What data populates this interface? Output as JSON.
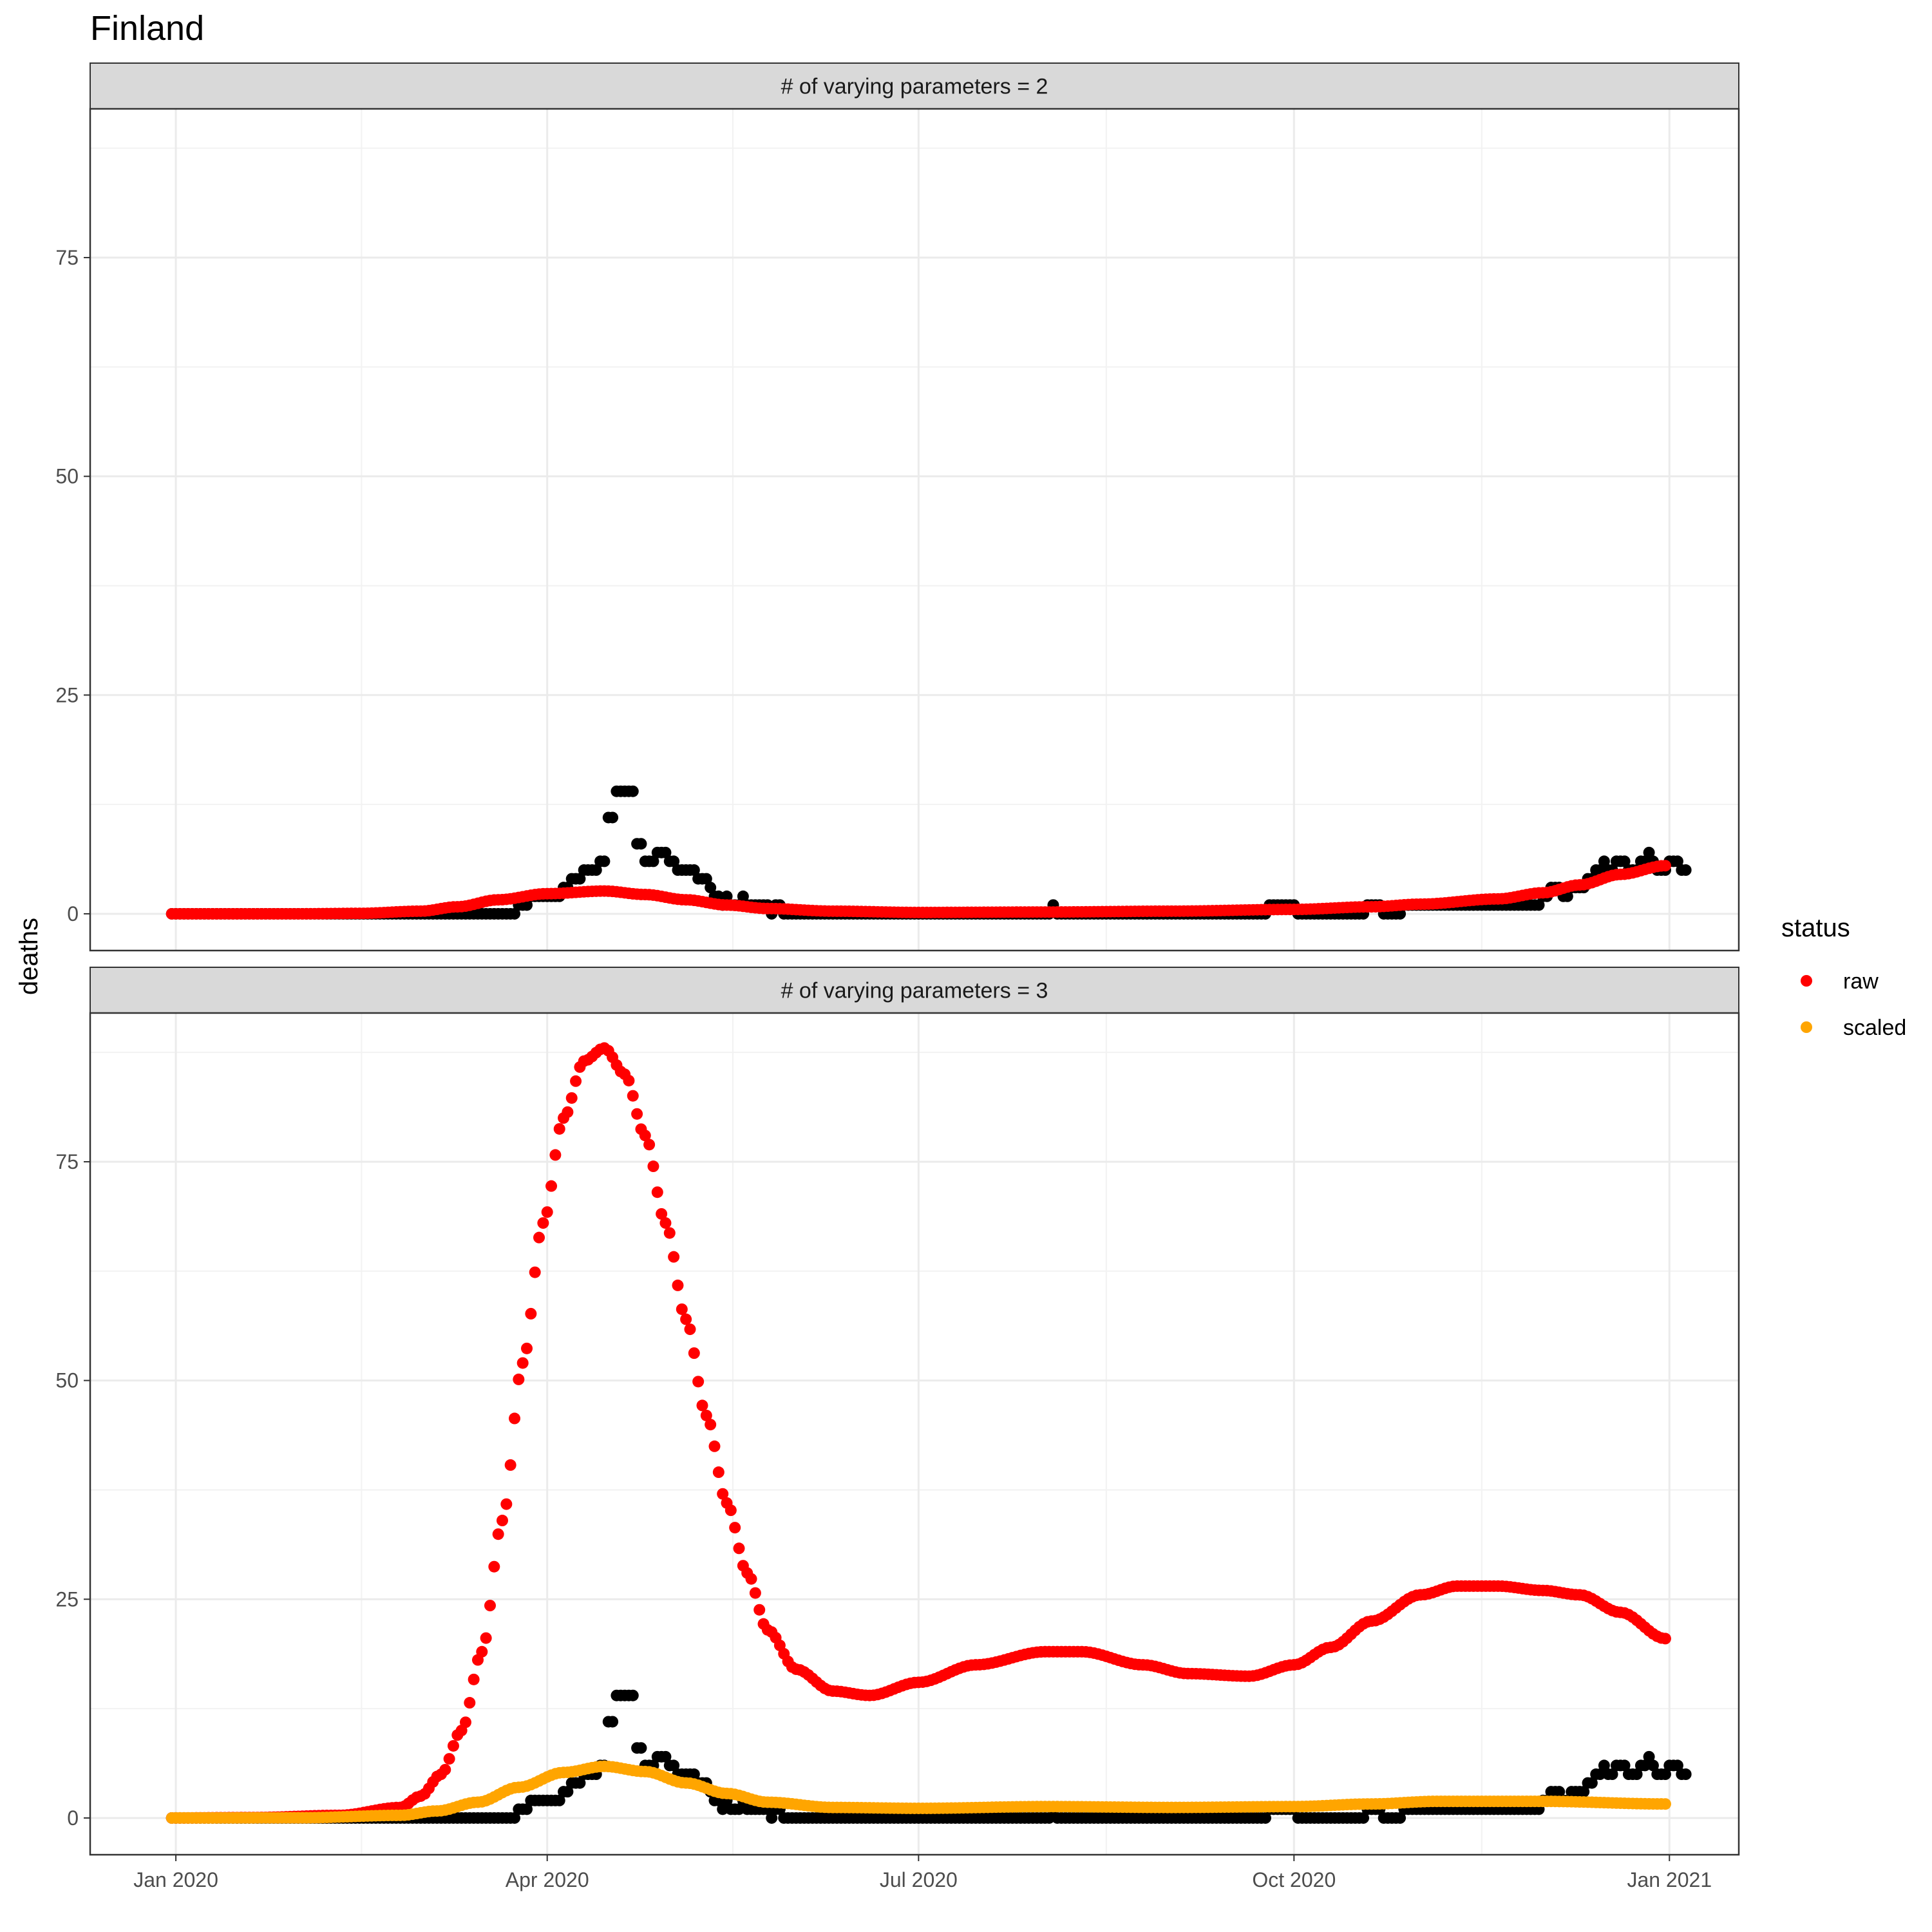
{
  "chart_data": {
    "type": "scatter",
    "title": "Finland",
    "ylabel": "deaths",
    "xlabel": "",
    "x_ticks": [
      {
        "date": "2020-01-01",
        "label": "Jan 2020"
      },
      {
        "date": "2020-04-01",
        "label": "Apr 2020"
      },
      {
        "date": "2020-07-01",
        "label": "Jul 2020"
      },
      {
        "date": "2020-10-01",
        "label": "Oct 2020"
      },
      {
        "date": "2021-01-01",
        "label": "Jan 2021"
      }
    ],
    "xlim": [
      "2019-12-11",
      "2021-01-18"
    ],
    "y_ticks": [
      0,
      25,
      50,
      75
    ],
    "ylim": [
      -4.2,
      92
    ],
    "grid": true,
    "legend": {
      "title": "status",
      "placement": "right",
      "entries": [
        {
          "name": "raw",
          "color": "#ff0000"
        },
        {
          "name": "scaled",
          "color": "#ffa500"
        }
      ]
    },
    "observed_color": "#000000",
    "observed_deaths": {
      "start_date": "2019-12-31",
      "values": [
        0,
        0,
        0,
        0,
        0,
        0,
        0,
        0,
        0,
        0,
        0,
        0,
        0,
        0,
        0,
        0,
        0,
        0,
        0,
        0,
        0,
        0,
        0,
        0,
        0,
        0,
        0,
        0,
        0,
        0,
        0,
        0,
        0,
        0,
        0,
        0,
        0,
        0,
        0,
        0,
        0,
        0,
        0,
        0,
        0,
        0,
        0,
        0,
        0,
        0,
        0,
        0,
        0,
        0,
        0,
        0,
        0,
        0,
        0,
        0,
        0,
        0,
        0,
        0,
        0,
        0,
        0,
        0,
        0,
        0,
        0,
        0,
        0,
        0,
        0,
        0,
        0,
        0,
        0,
        0,
        0,
        0,
        0,
        0,
        0,
        1,
        1,
        1,
        2,
        2,
        2,
        2,
        2,
        2,
        2,
        2,
        3,
        3,
        4,
        4,
        4,
        5,
        5,
        5,
        5,
        6,
        6,
        11,
        11,
        14,
        14,
        14,
        14,
        14,
        8,
        8,
        6,
        6,
        6,
        7,
        7,
        7,
        6,
        6,
        5,
        5,
        5,
        5,
        5,
        4,
        4,
        4,
        3,
        2,
        2,
        1,
        2,
        1,
        1,
        1,
        2,
        1,
        1,
        1,
        1,
        1,
        1,
        0,
        1,
        1,
        0,
        0,
        0,
        0,
        0,
        0,
        0,
        0,
        0,
        0,
        0,
        0,
        0,
        0,
        0,
        0,
        0,
        0,
        0,
        0,
        0,
        0,
        0,
        0,
        0,
        0,
        0,
        0,
        0,
        0,
        0,
        0,
        0,
        0,
        0,
        0,
        0,
        0,
        0,
        0,
        0,
        0,
        0,
        0,
        0,
        0,
        0,
        0,
        0,
        0,
        0,
        0,
        0,
        0,
        0,
        0,
        0,
        0,
        0,
        0,
        0,
        0,
        0,
        0,
        0,
        0,
        1,
        0,
        0,
        0,
        0,
        0,
        0,
        0,
        0,
        0,
        0,
        0,
        0,
        0,
        0,
        0,
        0,
        0,
        0,
        0,
        0,
        0,
        0,
        0,
        0,
        0,
        0,
        0,
        0,
        0,
        0,
        0,
        0,
        0,
        0,
        0,
        0,
        0,
        0,
        0,
        0,
        0,
        0,
        0,
        0,
        0,
        0,
        0,
        0,
        0,
        0,
        0,
        0,
        1,
        1,
        1,
        1,
        1,
        1,
        1,
        0,
        0,
        0,
        0,
        0,
        0,
        0,
        0,
        0,
        0,
        0,
        0,
        0,
        0,
        0,
        0,
        0,
        1,
        1,
        1,
        1,
        0,
        0,
        0,
        0,
        0,
        1,
        1,
        1,
        1,
        1,
        1,
        1,
        1,
        1,
        1,
        1,
        1,
        1,
        1,
        1,
        1,
        1,
        1,
        1,
        1,
        1,
        1,
        1,
        1,
        1,
        1,
        1,
        1,
        1,
        1,
        1,
        1,
        1,
        1,
        2,
        2,
        3,
        3,
        3,
        2,
        2,
        3,
        3,
        3,
        3,
        4,
        4,
        5,
        5,
        6,
        5,
        5,
        6,
        6,
        6,
        5,
        5,
        5,
        6,
        6,
        7,
        6,
        5,
        5,
        5,
        6,
        6,
        6,
        5,
        5
      ]
    },
    "panels": [
      {
        "strip": "# of varying parameters = 2",
        "curves": [
          {
            "name": "raw",
            "color": "#ff0000",
            "points": [
              [
                "2019-12-31",
                0
              ],
              [
                "2020-02-01",
                0
              ],
              [
                "2020-02-15",
                0.05
              ],
              [
                "2020-03-01",
                0.3
              ],
              [
                "2020-03-10",
                0.8
              ],
              [
                "2020-03-20",
                1.6
              ],
              [
                "2020-04-01",
                2.3
              ],
              [
                "2020-04-15",
                2.6
              ],
              [
                "2020-04-25",
                2.2
              ],
              [
                "2020-05-05",
                1.6
              ],
              [
                "2020-05-15",
                1.0
              ],
              [
                "2020-05-25",
                0.6
              ],
              [
                "2020-06-10",
                0.3
              ],
              [
                "2020-07-01",
                0.15
              ],
              [
                "2020-08-01",
                0.2
              ],
              [
                "2020-09-01",
                0.3
              ],
              [
                "2020-10-01",
                0.5
              ],
              [
                "2020-10-20",
                0.8
              ],
              [
                "2020-11-01",
                1.1
              ],
              [
                "2020-11-20",
                1.7
              ],
              [
                "2020-12-01",
                2.4
              ],
              [
                "2020-12-10",
                3.3
              ],
              [
                "2020-12-20",
                4.5
              ],
              [
                "2020-12-31",
                5.5
              ]
            ]
          }
        ]
      },
      {
        "strip": "# of varying parameters = 3",
        "curves": [
          {
            "name": "raw",
            "color": "#ff0000",
            "points": [
              [
                "2019-12-31",
                0
              ],
              [
                "2020-01-20",
                0.05
              ],
              [
                "2020-02-10",
                0.3
              ],
              [
                "2020-02-25",
                1.2
              ],
              [
                "2020-03-01",
                2.5
              ],
              [
                "2020-03-06",
                5
              ],
              [
                "2020-03-11",
                10
              ],
              [
                "2020-03-16",
                19
              ],
              [
                "2020-03-21",
                34
              ],
              [
                "2020-03-26",
                52
              ],
              [
                "2020-03-31",
                68
              ],
              [
                "2020-04-05",
                80
              ],
              [
                "2020-04-10",
                86.5
              ],
              [
                "2020-04-15",
                88
              ],
              [
                "2020-04-20",
                85
              ],
              [
                "2020-04-25",
                78
              ],
              [
                "2020-04-30",
                68
              ],
              [
                "2020-05-05",
                57
              ],
              [
                "2020-05-10",
                46
              ],
              [
                "2020-05-15",
                36
              ],
              [
                "2020-05-20",
                28
              ],
              [
                "2020-05-25",
                21.5
              ],
              [
                "2020-06-01",
                17
              ],
              [
                "2020-06-10",
                14.5
              ],
              [
                "2020-06-19",
                14
              ],
              [
                "2020-07-01",
                15.5
              ],
              [
                "2020-07-15",
                17.5
              ],
              [
                "2020-08-01",
                19
              ],
              [
                "2020-08-10",
                19
              ],
              [
                "2020-08-25",
                17.5
              ],
              [
                "2020-09-05",
                16.5
              ],
              [
                "2020-09-20",
                16.2
              ],
              [
                "2020-10-01",
                17.5
              ],
              [
                "2020-10-10",
                19.5
              ],
              [
                "2020-10-20",
                22.5
              ],
              [
                "2020-11-01",
                25.5
              ],
              [
                "2020-11-10",
                26.5
              ],
              [
                "2020-11-20",
                26.5
              ],
              [
                "2020-12-01",
                26
              ],
              [
                "2020-12-10",
                25.5
              ],
              [
                "2020-12-20",
                23.5
              ],
              [
                "2020-12-31",
                20.5
              ]
            ]
          },
          {
            "name": "scaled",
            "color": "#ffa500",
            "points": [
              [
                "2019-12-31",
                0
              ],
              [
                "2020-02-01",
                0.02
              ],
              [
                "2020-02-25",
                0.3
              ],
              [
                "2020-03-05",
                0.8
              ],
              [
                "2020-03-15",
                1.8
              ],
              [
                "2020-03-25",
                3.5
              ],
              [
                "2020-04-05",
                5.2
              ],
              [
                "2020-04-15",
                5.9
              ],
              [
                "2020-04-25",
                5.3
              ],
              [
                "2020-05-05",
                4.0
              ],
              [
                "2020-05-15",
                2.8
              ],
              [
                "2020-05-25",
                1.8
              ],
              [
                "2020-06-10",
                1.2
              ],
              [
                "2020-07-01",
                1.1
              ],
              [
                "2020-08-01",
                1.3
              ],
              [
                "2020-09-01",
                1.2
              ],
              [
                "2020-10-01",
                1.3
              ],
              [
                "2020-10-20",
                1.6
              ],
              [
                "2020-11-05",
                1.9
              ],
              [
                "2020-12-01",
                1.9
              ],
              [
                "2020-12-31",
                1.6
              ]
            ]
          }
        ]
      }
    ]
  }
}
